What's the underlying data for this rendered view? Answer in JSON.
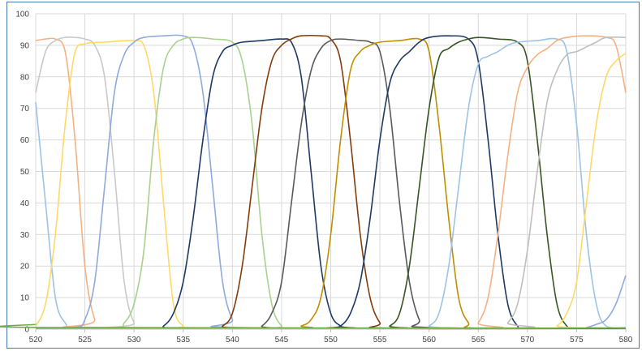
{
  "chart_data": {
    "type": "line",
    "title": "",
    "xlabel": "",
    "ylabel": "",
    "xlim": [
      520,
      580
    ],
    "ylim": [
      0,
      100
    ],
    "x_ticks": [
      520,
      525,
      530,
      535,
      540,
      545,
      550,
      555,
      560,
      565,
      570,
      575,
      580
    ],
    "y_ticks": [
      0,
      10,
      20,
      30,
      40,
      50,
      60,
      70,
      80,
      90,
      100
    ],
    "grid": true,
    "legend": "none",
    "series": [
      {
        "color": "#9cc3e6",
        "points": [
          [
            520,
            72
          ],
          [
            521,
            40
          ],
          [
            522,
            10
          ],
          [
            523,
            2
          ],
          [
            524,
            0.5
          ],
          [
            530,
            0.3
          ],
          [
            580,
            0.3
          ]
        ]
      },
      {
        "color": "#f4b183",
        "points": [
          [
            520,
            91.5
          ],
          [
            521,
            92
          ],
          [
            522,
            92
          ],
          [
            523,
            88
          ],
          [
            524,
            60
          ],
          [
            525,
            20
          ],
          [
            526,
            3
          ],
          [
            527,
            0.5
          ],
          [
            580,
            0.3
          ]
        ]
      },
      {
        "color": "#c9c9c9",
        "points": [
          [
            520,
            75
          ],
          [
            521,
            88
          ],
          [
            522,
            91.5
          ],
          [
            523,
            92.5
          ],
          [
            524,
            92.5
          ],
          [
            525,
            92
          ],
          [
            526,
            90
          ],
          [
            527,
            80
          ],
          [
            528,
            50
          ],
          [
            529,
            15
          ],
          [
            530,
            2
          ],
          [
            531,
            0.5
          ],
          [
            580,
            0.3
          ]
        ]
      },
      {
        "color": "#ffd966",
        "points": [
          [
            520,
            1
          ],
          [
            521,
            8
          ],
          [
            522,
            30
          ],
          [
            523,
            65
          ],
          [
            524,
            88
          ],
          [
            525,
            90.5
          ],
          [
            527,
            91
          ],
          [
            530,
            91.5
          ],
          [
            531,
            90
          ],
          [
            532,
            75
          ],
          [
            533,
            40
          ],
          [
            534,
            8
          ],
          [
            535,
            1
          ],
          [
            536,
            0.3
          ],
          [
            580,
            0.3
          ]
        ]
      },
      {
        "color": "#8faadc",
        "points": [
          [
            520,
            0.3
          ],
          [
            524,
            0.5
          ],
          [
            525,
            3
          ],
          [
            526,
            15
          ],
          [
            527,
            45
          ],
          [
            528,
            75
          ],
          [
            529,
            87
          ],
          [
            530,
            91
          ],
          [
            531,
            92.5
          ],
          [
            533,
            93
          ],
          [
            535,
            93
          ],
          [
            536,
            90
          ],
          [
            537,
            75
          ],
          [
            538,
            45
          ],
          [
            539,
            15
          ],
          [
            540,
            3
          ],
          [
            541,
            0.5
          ],
          [
            580,
            0.3
          ]
        ]
      },
      {
        "color": "#a9d18e",
        "points": [
          [
            520,
            0.3
          ],
          [
            528,
            0.5
          ],
          [
            529,
            2
          ],
          [
            530,
            8
          ],
          [
            531,
            25
          ],
          [
            532,
            60
          ],
          [
            533,
            83
          ],
          [
            534,
            90
          ],
          [
            535,
            92
          ],
          [
            536,
            92.5
          ],
          [
            538,
            92
          ],
          [
            540,
            91
          ],
          [
            541,
            85
          ],
          [
            542,
            65
          ],
          [
            543,
            30
          ],
          [
            544,
            8
          ],
          [
            545,
            1
          ],
          [
            546,
            0.3
          ],
          [
            580,
            0.3
          ]
        ]
      },
      {
        "color": "#1f3864",
        "points": [
          [
            520,
            0.3
          ],
          [
            532,
            0.3
          ],
          [
            533,
            1
          ],
          [
            534,
            5
          ],
          [
            535,
            15
          ],
          [
            536,
            35
          ],
          [
            537,
            60
          ],
          [
            538,
            80
          ],
          [
            539,
            88
          ],
          [
            540,
            90
          ],
          [
            541,
            91
          ],
          [
            543,
            91.5
          ],
          [
            545,
            92
          ],
          [
            546,
            91
          ],
          [
            547,
            80
          ],
          [
            548,
            50
          ],
          [
            549,
            20
          ],
          [
            550,
            5
          ],
          [
            551,
            1
          ],
          [
            552,
            0.3
          ],
          [
            580,
            0.3
          ]
        ]
      },
      {
        "color": "#843c0c",
        "points": [
          [
            520,
            0.3
          ],
          [
            538,
            0.3
          ],
          [
            539,
            1
          ],
          [
            540,
            5
          ],
          [
            541,
            20
          ],
          [
            542,
            45
          ],
          [
            543,
            70
          ],
          [
            544,
            85
          ],
          [
            545,
            90
          ],
          [
            546,
            92
          ],
          [
            547,
            93
          ],
          [
            549,
            93
          ],
          [
            550,
            92
          ],
          [
            551,
            85
          ],
          [
            552,
            60
          ],
          [
            553,
            30
          ],
          [
            554,
            10
          ],
          [
            555,
            2
          ],
          [
            556,
            0.3
          ],
          [
            580,
            0.3
          ]
        ]
      },
      {
        "color": "#595959",
        "points": [
          [
            520,
            0.3
          ],
          [
            542,
            0.3
          ],
          [
            543,
            1
          ],
          [
            544,
            5
          ],
          [
            545,
            15
          ],
          [
            546,
            40
          ],
          [
            547,
            65
          ],
          [
            548,
            82
          ],
          [
            549,
            89
          ],
          [
            550,
            91.5
          ],
          [
            551,
            92
          ],
          [
            553,
            91.5
          ],
          [
            554,
            91
          ],
          [
            555,
            88
          ],
          [
            556,
            70
          ],
          [
            557,
            40
          ],
          [
            558,
            15
          ],
          [
            559,
            3
          ],
          [
            560,
            0.5
          ],
          [
            580,
            0.3
          ]
        ]
      },
      {
        "color": "#bf8f00",
        "points": [
          [
            520,
            0.3
          ],
          [
            546,
            0.3
          ],
          [
            547,
            1
          ],
          [
            548,
            3
          ],
          [
            549,
            10
          ],
          [
            550,
            30
          ],
          [
            551,
            60
          ],
          [
            552,
            82
          ],
          [
            553,
            88
          ],
          [
            554,
            90
          ],
          [
            555,
            91
          ],
          [
            557,
            91.5
          ],
          [
            559,
            92
          ],
          [
            560,
            88
          ],
          [
            561,
            65
          ],
          [
            562,
            35
          ],
          [
            563,
            10
          ],
          [
            564,
            2
          ],
          [
            565,
            0.3
          ],
          [
            580,
            0.3
          ]
        ]
      },
      {
        "color": "#203864",
        "points": [
          [
            520,
            0.3
          ],
          [
            550,
            0.3
          ],
          [
            551,
            1
          ],
          [
            552,
            5
          ],
          [
            553,
            15
          ],
          [
            554,
            35
          ],
          [
            555,
            60
          ],
          [
            556,
            78
          ],
          [
            557,
            85
          ],
          [
            558,
            88
          ],
          [
            559,
            91
          ],
          [
            560,
            92.5
          ],
          [
            562,
            93
          ],
          [
            564,
            92
          ],
          [
            565,
            85
          ],
          [
            566,
            60
          ],
          [
            567,
            30
          ],
          [
            568,
            8
          ],
          [
            569,
            1
          ],
          [
            570,
            0.3
          ],
          [
            580,
            0.3
          ]
        ]
      },
      {
        "color": "#375623",
        "points": [
          [
            520,
            0.3
          ],
          [
            555,
            0.3
          ],
          [
            556,
            1
          ],
          [
            557,
            5
          ],
          [
            558,
            20
          ],
          [
            559,
            45
          ],
          [
            560,
            70
          ],
          [
            561,
            86
          ],
          [
            562,
            89
          ],
          [
            563,
            91
          ],
          [
            564,
            92
          ],
          [
            565,
            92.5
          ],
          [
            567,
            92
          ],
          [
            569,
            91
          ],
          [
            570,
            85
          ],
          [
            571,
            60
          ],
          [
            572,
            30
          ],
          [
            573,
            8
          ],
          [
            574,
            1
          ],
          [
            575,
            0.3
          ],
          [
            580,
            0.3
          ]
        ]
      },
      {
        "color": "#9dc3e6",
        "points": [
          [
            520,
            0.3
          ],
          [
            559,
            0.3
          ],
          [
            560,
            1
          ],
          [
            561,
            5
          ],
          [
            562,
            20
          ],
          [
            563,
            45
          ],
          [
            564,
            70
          ],
          [
            565,
            84
          ],
          [
            566,
            86.5
          ],
          [
            567,
            88
          ],
          [
            568,
            90
          ],
          [
            569,
            91
          ],
          [
            571,
            91.5
          ],
          [
            573,
            92
          ],
          [
            574,
            88
          ],
          [
            575,
            65
          ],
          [
            576,
            30
          ],
          [
            577,
            8
          ],
          [
            578,
            1
          ],
          [
            580,
            0.5
          ]
        ]
      },
      {
        "color": "#f4b183",
        "points": [
          [
            520,
            0.3
          ],
          [
            564,
            0.3
          ],
          [
            565,
            2
          ],
          [
            566,
            10
          ],
          [
            567,
            30
          ],
          [
            568,
            55
          ],
          [
            569,
            75
          ],
          [
            570,
            83
          ],
          [
            571,
            87
          ],
          [
            572,
            89
          ],
          [
            573,
            91.5
          ],
          [
            574,
            92.5
          ],
          [
            576,
            93
          ],
          [
            578,
            92.5
          ],
          [
            579,
            90
          ],
          [
            580,
            75
          ]
        ]
      },
      {
        "color": "#bfbfbf",
        "points": [
          [
            520,
            0.3
          ],
          [
            567,
            0.3
          ],
          [
            568,
            2
          ],
          [
            569,
            8
          ],
          [
            570,
            25
          ],
          [
            571,
            50
          ],
          [
            572,
            72
          ],
          [
            573,
            82
          ],
          [
            574,
            87
          ],
          [
            575,
            88
          ],
          [
            576,
            89.5
          ],
          [
            577,
            91
          ],
          [
            578,
            92.5
          ],
          [
            580,
            92.5
          ]
        ]
      },
      {
        "color": "#ffd966",
        "points": [
          [
            520,
            0.3
          ],
          [
            572,
            0.3
          ],
          [
            573,
            1
          ],
          [
            574,
            5
          ],
          [
            575,
            15
          ],
          [
            576,
            40
          ],
          [
            577,
            65
          ],
          [
            578,
            80
          ],
          [
            579,
            85
          ],
          [
            580,
            87.5
          ]
        ]
      },
      {
        "color": "#8faadc",
        "points": [
          [
            520,
            0.3
          ],
          [
            575,
            0.3
          ],
          [
            576,
            0.5
          ],
          [
            577,
            1.5
          ],
          [
            578,
            3
          ],
          [
            579,
            8
          ],
          [
            580,
            17
          ]
        ]
      },
      {
        "color": "#70ad47",
        "points": [
          [
            520,
            1.5
          ],
          [
            521,
            0.5
          ],
          [
            580,
            0.3
          ]
        ]
      }
    ]
  }
}
